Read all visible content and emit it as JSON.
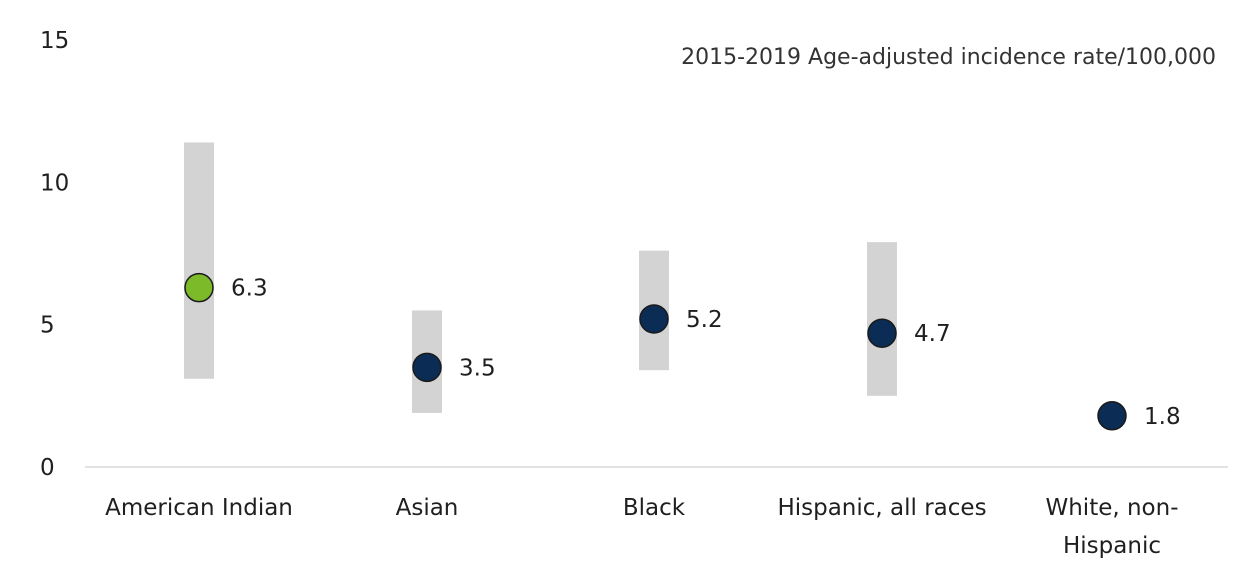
{
  "chart_data": {
    "type": "scatter",
    "title": "2015-2019 Age-adjusted incidence rate/100,000",
    "xlabel": "",
    "ylabel": "",
    "ylim": [
      0,
      15
    ],
    "yticks": [
      "0",
      "5",
      "10",
      "15"
    ],
    "grid": false,
    "categories": [
      [
        "American Indian"
      ],
      [
        "Asian"
      ],
      [
        "Black"
      ],
      [
        "Hispanic, all races"
      ],
      [
        "White, non-",
        "Hispanic"
      ]
    ],
    "series": [
      {
        "values": [
          6.3,
          3.5,
          5.2,
          4.7,
          1.8
        ],
        "labels": [
          "6.3",
          "3.5",
          "5.2",
          "4.7",
          "1.8"
        ],
        "ci_low": [
          3.1,
          1.9,
          3.4,
          2.5,
          null
        ],
        "ci_high": [
          11.4,
          5.5,
          7.6,
          7.9,
          null
        ]
      }
    ],
    "colors": {
      "highlight": "#7dba2a",
      "default": "#0b2c55",
      "interval": "#d3d3d3",
      "axis": "#d9d9d9"
    },
    "highlight_index": 0
  }
}
